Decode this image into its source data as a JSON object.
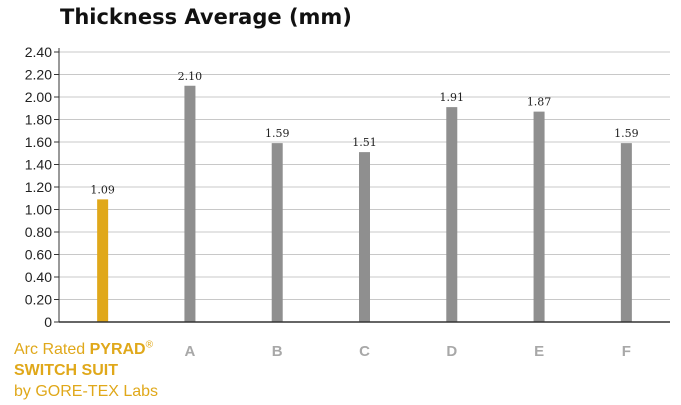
{
  "chart_data": {
    "type": "bar",
    "title": "Thickness Average (mm)",
    "categories": [
      "",
      "A",
      "B",
      "C",
      "D",
      "E",
      "F"
    ],
    "values": [
      1.09,
      2.1,
      1.59,
      1.51,
      1.91,
      1.87,
      1.59
    ],
    "data_labels": [
      "1.09",
      "2.10",
      "1.59",
      "1.51",
      "1.91",
      "1.87",
      "1.59"
    ],
    "ylim": [
      0,
      2.4
    ],
    "yticks": [
      0,
      0.2,
      0.4,
      0.6,
      0.8,
      1.0,
      1.2,
      1.4,
      1.6,
      1.8,
      2.0,
      2.2,
      2.4
    ],
    "ytick_labels": [
      "0",
      "0.20",
      "0.40",
      "0.60",
      "0.80",
      "1.00",
      "1.20",
      "1.40",
      "1.60",
      "1.80",
      "2.00",
      "2.20",
      "2.40"
    ],
    "grid": true,
    "colors": {
      "highlight": "#e0a81a",
      "bar": "#8f8f8f",
      "grid": "#c8c8c8",
      "axis": "#333333",
      "category_text": "#a8a8a8",
      "title_text": "#111111"
    },
    "first_category_label": {
      "prefix": "Arc Rated ",
      "brand": "PYRAD",
      "registered": "®",
      "line2": "SWITCH SUIT",
      "line3": "by GORE-TEX Labs"
    }
  }
}
